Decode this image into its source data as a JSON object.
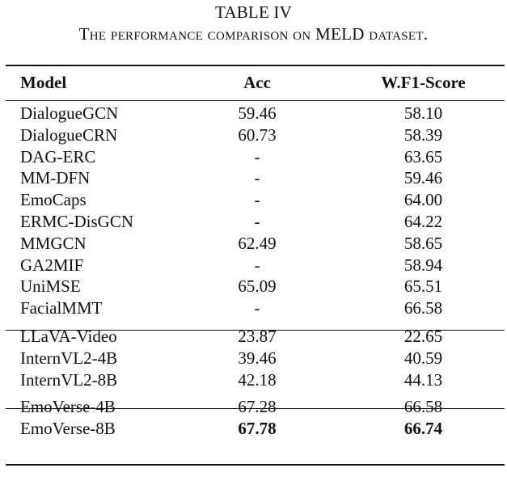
{
  "caption": {
    "label": "TABLE IV",
    "text": "The performance comparison on MELD dataset."
  },
  "table": {
    "headers": {
      "model": "Model",
      "acc": "Acc",
      "f1": "W.F1-Score"
    },
    "groups": [
      [
        {
          "model": "DialogueGCN",
          "acc": "59.46",
          "f1": "58.10"
        },
        {
          "model": "DialogueCRN",
          "acc": "60.73",
          "f1": "58.39"
        },
        {
          "model": "DAG-ERC",
          "acc": "-",
          "f1": "63.65"
        },
        {
          "model": "MM-DFN",
          "acc": "-",
          "f1": "59.46"
        },
        {
          "model": "EmoCaps",
          "acc": "-",
          "f1": "64.00"
        },
        {
          "model": "ERMC-DisGCN",
          "acc": "-",
          "f1": "64.22"
        },
        {
          "model": "MMGCN",
          "acc": "62.49",
          "f1": "58.65"
        },
        {
          "model": "GA2MIF",
          "acc": "-",
          "f1": "58.94"
        },
        {
          "model": "UniMSE",
          "acc": "65.09",
          "f1": "65.51"
        },
        {
          "model": "FacialMMT",
          "acc": "-",
          "f1": "66.58"
        }
      ],
      [
        {
          "model": "LLaVA-Video",
          "acc": "23.87",
          "f1": "22.65"
        },
        {
          "model": "InternVL2-4B",
          "acc": "39.46",
          "f1": "40.59"
        },
        {
          "model": "InternVL2-8B",
          "acc": "42.18",
          "f1": "44.13"
        }
      ],
      [
        {
          "model": "EmoVerse-4B",
          "acc": "67.28",
          "f1": "66.58"
        },
        {
          "model": "EmoVerse-8B",
          "acc": "67.78",
          "f1": "66.74",
          "bold": true
        }
      ]
    ]
  }
}
